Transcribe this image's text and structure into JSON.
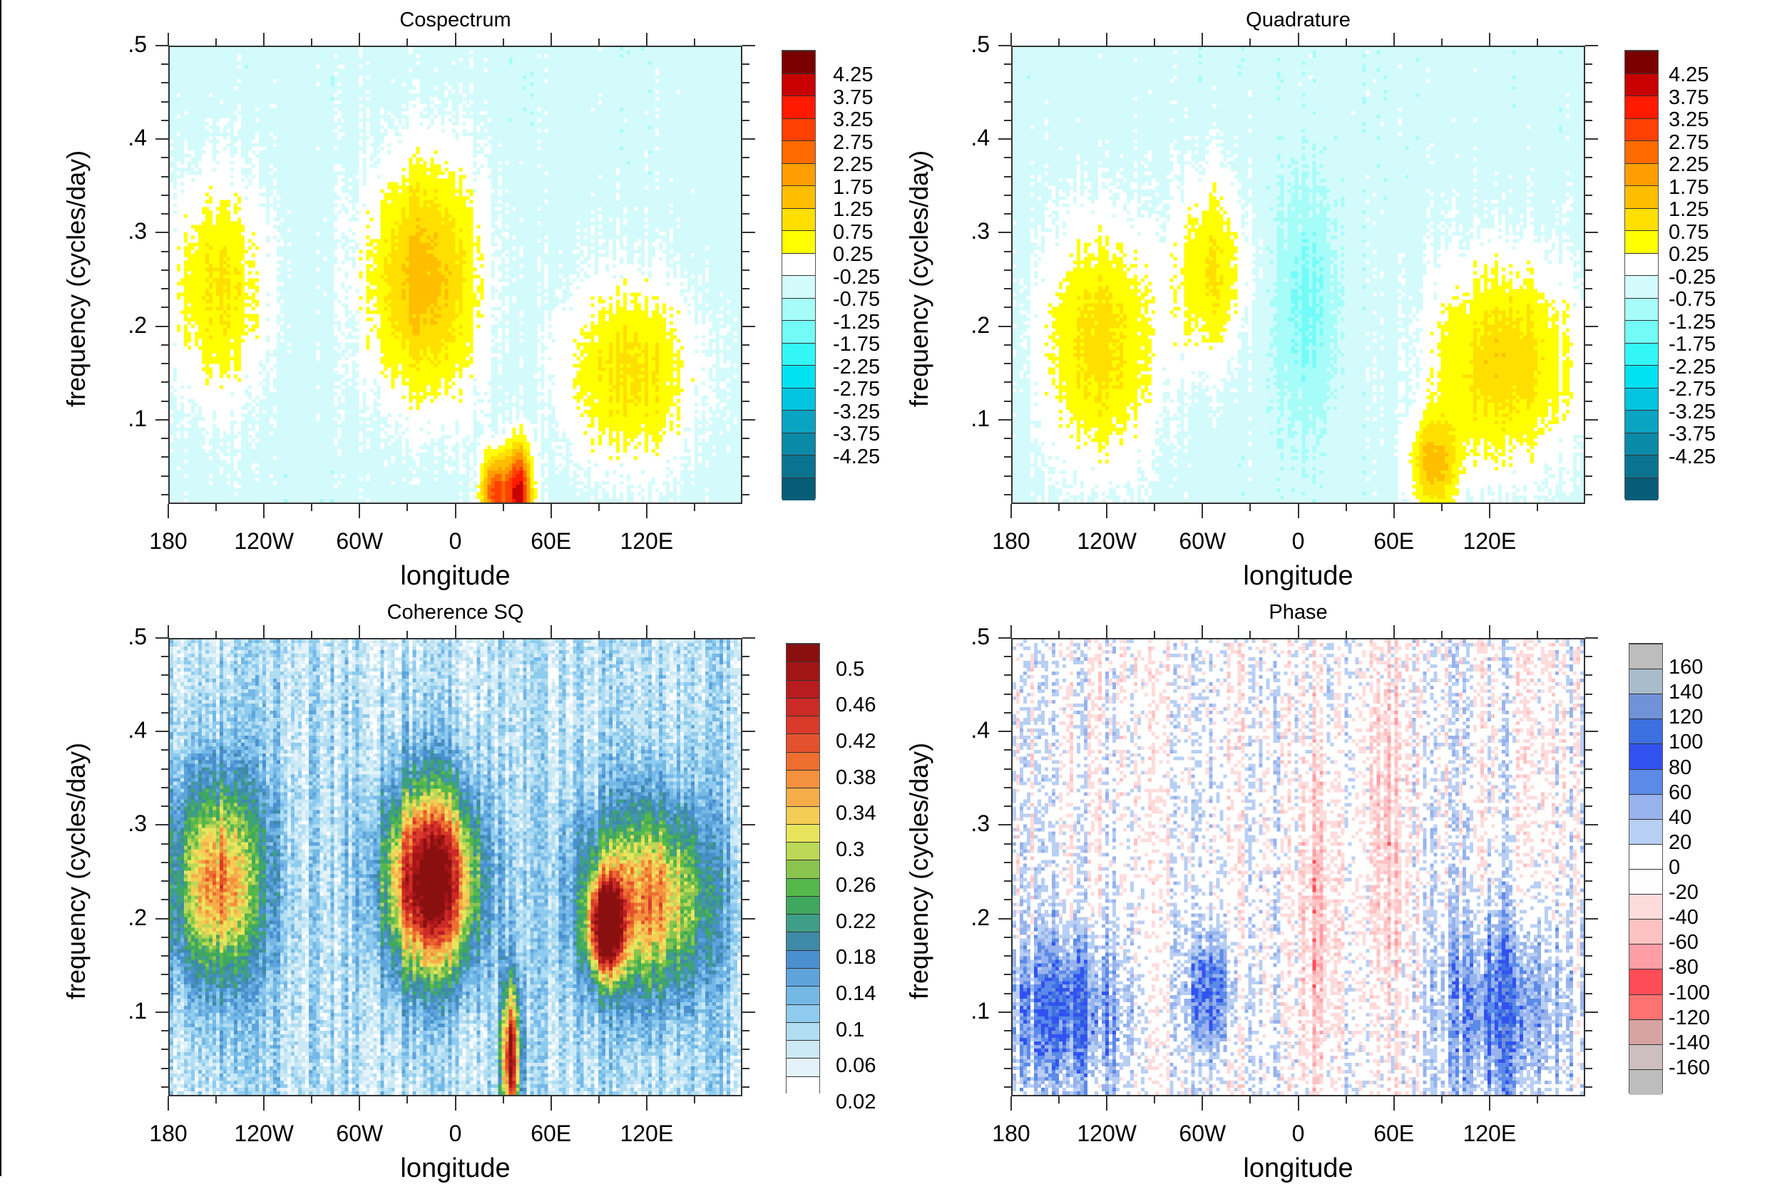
{
  "chart_data": [
    {
      "type": "heatmap",
      "title": "Cospectrum",
      "xlabel": "longitude",
      "ylabel": "frequency (cycles/day)",
      "xlim": [
        -180,
        180
      ],
      "ylim": [
        0.01,
        0.5
      ],
      "xticks": [
        -180,
        -120,
        -60,
        0,
        60,
        120
      ],
      "xtick_labels": [
        "180",
        "120W",
        "60W",
        "0",
        "60E",
        "120E"
      ],
      "yticks": [
        0.1,
        0.2,
        0.3,
        0.4,
        0.5
      ],
      "ytick_labels": [
        ".1",
        ".2",
        ".3",
        ".4",
        ".5"
      ],
      "colorbar": {
        "levels": [
          -4.25,
          -3.75,
          -3.25,
          -2.75,
          -2.25,
          -1.75,
          -1.25,
          -0.75,
          -0.25,
          0.25,
          0.75,
          1.25,
          1.75,
          2.25,
          2.75,
          3.25,
          3.75,
          4.25
        ],
        "labels": [
          "4.25",
          "3.75",
          "3.25",
          "2.75",
          "2.25",
          "1.75",
          "1.25",
          "0.75",
          "0.25",
          "-0.25",
          "-0.75",
          "-1.25",
          "-1.75",
          "-2.25",
          "-2.75",
          "-3.25",
          "-3.75",
          "-4.25"
        ],
        "colors": [
          "#075d78",
          "#0a7490",
          "#0b8aa8",
          "#0aa3c2",
          "#03c4e0",
          "#00e2f2",
          "#33f7f7",
          "#73fbf8",
          "#a6fcf8",
          "#d4fbfb",
          "#ffffff",
          "#ffff00",
          "#ffdf00",
          "#ffbe00",
          "#ff9e00",
          "#ff6a00",
          "#ff4000",
          "#ff1a00",
          "#c80000",
          "#7a0000"
        ]
      },
      "features": [
        {
          "lon": -150,
          "freq": 0.24,
          "value": 1.3,
          "dlon": 30,
          "dfreq": 0.12
        },
        {
          "lon": -20,
          "freq": 0.25,
          "value": 2.0,
          "dlon": 35,
          "dfreq": 0.13
        },
        {
          "lon": 40,
          "freq": 0.02,
          "value": 4.5,
          "dlon": 8,
          "dfreq": 0.05
        },
        {
          "lon": 25,
          "freq": 0.02,
          "value": 3.5,
          "dlon": 8,
          "dfreq": 0.04
        },
        {
          "lon": 110,
          "freq": 0.15,
          "value": 1.4,
          "dlon": 40,
          "dfreq": 0.1
        }
      ]
    },
    {
      "type": "heatmap",
      "title": "Quadrature",
      "xlabel": "longitude",
      "ylabel": "frequency (cycles/day)",
      "xlim": [
        -180,
        180
      ],
      "ylim": [
        0.01,
        0.5
      ],
      "xticks": [
        -180,
        -120,
        -60,
        0,
        60,
        120
      ],
      "xtick_labels": [
        "180",
        "120W",
        "60W",
        "0",
        "60E",
        "120E"
      ],
      "yticks": [
        0.1,
        0.2,
        0.3,
        0.4,
        0.5
      ],
      "ytick_labels": [
        ".1",
        ".2",
        ".3",
        ".4",
        ".5"
      ],
      "colorbar": {
        "levels": [
          -4.25,
          -3.75,
          -3.25,
          -2.75,
          -2.25,
          -1.75,
          -1.25,
          -0.75,
          -0.25,
          0.25,
          0.75,
          1.25,
          1.75,
          2.25,
          2.75,
          3.25,
          3.75,
          4.25
        ],
        "labels": [
          "4.25",
          "3.75",
          "3.25",
          "2.75",
          "2.25",
          "1.75",
          "1.25",
          "0.75",
          "0.25",
          "-0.25",
          "-0.75",
          "-1.25",
          "-1.75",
          "-2.25",
          "-2.75",
          "-3.25",
          "-3.75",
          "-4.25"
        ],
        "colors": [
          "#075d78",
          "#0a7490",
          "#0b8aa8",
          "#0aa3c2",
          "#03c4e0",
          "#00e2f2",
          "#33f7f7",
          "#73fbf8",
          "#a6fcf8",
          "#d4fbfb",
          "#ffffff",
          "#ffff00",
          "#ffdf00",
          "#ffbe00",
          "#ff9e00",
          "#ff6a00",
          "#ff4000",
          "#ff1a00",
          "#c80000",
          "#7a0000"
        ]
      },
      "features": [
        {
          "lon": -125,
          "freq": 0.18,
          "value": 1.5,
          "dlon": 35,
          "dfreq": 0.13
        },
        {
          "lon": -55,
          "freq": 0.26,
          "value": 1.3,
          "dlon": 22,
          "dfreq": 0.1
        },
        {
          "lon": 5,
          "freq": 0.22,
          "value": -0.9,
          "dlon": 18,
          "dfreq": 0.12
        },
        {
          "lon": 130,
          "freq": 0.16,
          "value": 1.6,
          "dlon": 45,
          "dfreq": 0.11
        },
        {
          "lon": 85,
          "freq": 0.05,
          "value": 1.8,
          "dlon": 15,
          "dfreq": 0.05
        }
      ]
    },
    {
      "type": "heatmap",
      "title": "Coherence SQ",
      "xlabel": "longitude",
      "ylabel": "frequency (cycles/day)",
      "xlim": [
        -180,
        180
      ],
      "ylim": [
        0.01,
        0.5
      ],
      "xticks": [
        -180,
        -120,
        -60,
        0,
        60,
        120
      ],
      "xtick_labels": [
        "180",
        "120W",
        "60W",
        "0",
        "60E",
        "120E"
      ],
      "yticks": [
        0.1,
        0.2,
        0.3,
        0.4,
        0.5
      ],
      "ytick_labels": [
        ".1",
        ".2",
        ".3",
        ".4",
        ".5"
      ],
      "colorbar": {
        "levels": [
          0.02,
          0.04,
          0.06,
          0.08,
          0.1,
          0.12,
          0.14,
          0.16,
          0.18,
          0.2,
          0.22,
          0.24,
          0.26,
          0.28,
          0.3,
          0.32,
          0.34,
          0.36,
          0.38,
          0.4,
          0.42,
          0.44,
          0.46,
          0.48,
          0.5
        ],
        "labels": [
          "0.5",
          "0.46",
          "0.42",
          "0.38",
          "0.34",
          "0.3",
          "0.26",
          "0.22",
          "0.18",
          "0.14",
          "0.1",
          "0.06",
          "0.02"
        ],
        "colors": [
          "#ffffff",
          "#e4f3fa",
          "#cce9f6",
          "#b0ddf2",
          "#8ecbee",
          "#74b8e6",
          "#5ea4db",
          "#4a8fcf",
          "#3f8aa6",
          "#3e9e88",
          "#3fa85e",
          "#55b84a",
          "#8ac44e",
          "#bbd856",
          "#e8e55c",
          "#f5cc55",
          "#f5ad4a",
          "#f3913d",
          "#ed6e2f",
          "#e4522d",
          "#d93a2a",
          "#cc2a27",
          "#b81c1f",
          "#a21616",
          "#8a1010"
        ]
      },
      "features": [
        {
          "lon": -150,
          "freq": 0.24,
          "value": 0.3,
          "dlon": 30,
          "dfreq": 0.11
        },
        {
          "lon": -15,
          "freq": 0.24,
          "value": 0.5,
          "dlon": 28,
          "dfreq": 0.1
        },
        {
          "lon": 95,
          "freq": 0.19,
          "value": 0.44,
          "dlon": 10,
          "dfreq": 0.05
        },
        {
          "lon": 120,
          "freq": 0.22,
          "value": 0.3,
          "dlon": 40,
          "dfreq": 0.1
        },
        {
          "lon": 35,
          "freq": 0.05,
          "value": 0.42,
          "dlon": 6,
          "dfreq": 0.08
        }
      ]
    },
    {
      "type": "heatmap",
      "title": "Phase",
      "xlabel": "longitude",
      "ylabel": "frequency (cycles/day)",
      "xlim": [
        -180,
        180
      ],
      "ylim": [
        0.01,
        0.5
      ],
      "xticks": [
        -180,
        -120,
        -60,
        0,
        60,
        120
      ],
      "xtick_labels": [
        "180",
        "120W",
        "60W",
        "0",
        "60E",
        "120E"
      ],
      "yticks": [
        0.1,
        0.2,
        0.3,
        0.4,
        0.5
      ],
      "ytick_labels": [
        ".1",
        ".2",
        ".3",
        ".4",
        ".5"
      ],
      "colorbar": {
        "levels": [
          -160,
          -140,
          -120,
          -100,
          -80,
          -60,
          -40,
          -20,
          0,
          20,
          40,
          60,
          80,
          100,
          120,
          140,
          160
        ],
        "labels": [
          "160",
          "140",
          "120",
          "100",
          "80",
          "60",
          "40",
          "20",
          "0",
          "-20",
          "-40",
          "-60",
          "-80",
          "-100",
          "-120",
          "-140",
          "-160"
        ],
        "colors": [
          "#bdbdbd",
          "#cdbfbf",
          "#d8a3a3",
          "#ff7272",
          "#ff4d57",
          "#ff9ea5",
          "#ffc2c2",
          "#ffdcdc",
          "#fefefe",
          "#ffffff",
          "#b8cff4",
          "#97b2ec",
          "#5b8ae8",
          "#3252f0",
          "#3d70e0",
          "#7191d8",
          "#a8bccb",
          "#bdbdbd"
        ]
      },
      "features": [
        {
          "lon": -145,
          "freq": 0.1,
          "value": 90,
          "dlon": 35,
          "dfreq": 0.08
        },
        {
          "lon": -55,
          "freq": 0.12,
          "value": 80,
          "dlon": 15,
          "dfreq": 0.06
        },
        {
          "lon": 15,
          "freq": 0.2,
          "value": -45,
          "dlon": 15,
          "dfreq": 0.2
        },
        {
          "lon": 55,
          "freq": 0.3,
          "value": -40,
          "dlon": 12,
          "dfreq": 0.2
        },
        {
          "lon": 130,
          "freq": 0.1,
          "value": 85,
          "dlon": 35,
          "dfreq": 0.1
        }
      ]
    }
  ]
}
